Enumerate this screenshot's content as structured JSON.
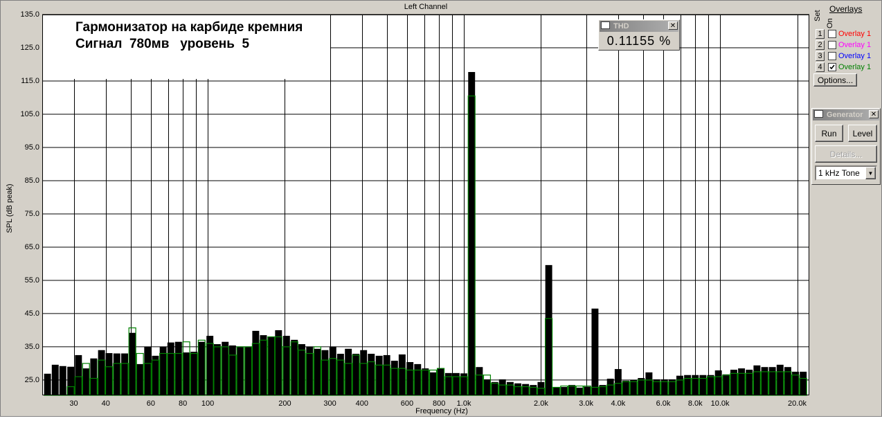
{
  "chart_data": {
    "type": "bar",
    "title": "Left Channel",
    "annotations": [
      "Гармонизатор на карбиде кремния",
      "Сигнал  780мв   уровень  5"
    ],
    "x_label": "Frequency (Hz)",
    "y_label": "SPL (dB peak)",
    "x_scale": "log",
    "grid": true,
    "xlim": [
      22.6,
      22300
    ],
    "ylim": [
      20.4,
      135
    ],
    "xticks": [
      30,
      40,
      60,
      80,
      100,
      200,
      300,
      400,
      600,
      800,
      {
        "value": 1000,
        "label": "1.0k"
      },
      {
        "value": 2000,
        "label": "2.0k"
      },
      {
        "value": 3000,
        "label": "3.0k"
      },
      {
        "value": 4000,
        "label": "4.0k"
      },
      {
        "value": 6000,
        "label": "6.0k"
      },
      {
        "value": 8000,
        "label": "8.0k"
      },
      {
        "value": 10000,
        "label": "10.0k"
      },
      {
        "value": 20000,
        "label": "20.0k"
      }
    ],
    "xgrid": [
      30,
      40,
      50,
      60,
      70,
      80,
      90,
      100,
      200,
      300,
      400,
      500,
      600,
      700,
      800,
      900,
      1000,
      2000,
      3000,
      4000,
      5000,
      6000,
      7000,
      8000,
      9000,
      10000,
      20000
    ],
    "yticks": [
      {
        "value": 25,
        "label": "25.0"
      },
      {
        "value": 35,
        "label": "35.0"
      },
      {
        "value": 45,
        "label": "45.0"
      },
      {
        "value": 55,
        "label": "55.0"
      },
      {
        "value": 65,
        "label": "65.0"
      },
      {
        "value": 75,
        "label": "75.0"
      },
      {
        "value": 85,
        "label": "85.0"
      },
      {
        "value": 95,
        "label": "95.0"
      },
      {
        "value": 105,
        "label": "105.0"
      },
      {
        "value": 115,
        "label": "115.0"
      },
      {
        "value": 125,
        "label": "125.0"
      },
      {
        "value": 135,
        "label": "135.0"
      }
    ],
    "x": [
      23.7,
      25.4,
      27.2,
      29.2,
      31.3,
      33.5,
      35.9,
      38.5,
      41.2,
      44.2,
      47.4,
      50.8,
      54.4,
      58.3,
      62.5,
      67.0,
      71.8,
      76.9,
      82.5,
      88.4,
      94.7,
      102,
      109,
      117,
      125,
      134,
      144,
      154,
      165,
      177,
      189,
      203,
      218,
      233,
      250,
      268,
      287,
      308,
      330,
      354,
      379,
      406,
      435,
      467,
      500,
      536,
      574,
      616,
      660,
      707,
      758,
      812,
      871,
      933,
      1000,
      1072,
      1149,
      1231,
      1320,
      1414,
      1516,
      1625,
      1741,
      1866,
      2000,
      2144,
      2297,
      2462,
      2639,
      2828,
      3031,
      3249,
      3482,
      3732,
      4000,
      4287,
      4595,
      4925,
      5278,
      5657,
      6063,
      6498,
      6964,
      7464,
      8000,
      8574,
      9190,
      9849,
      10556,
      11314,
      12126,
      12996,
      13929,
      14929,
      16000,
      17148,
      18379,
      19698,
      21112
    ],
    "series": [
      {
        "color": "#000000",
        "values": [
          26.9,
          29.6,
          29.2,
          29.0,
          32.5,
          28.5,
          31.5,
          34.0,
          33.1,
          33.0,
          33.0,
          39.2,
          29.8,
          35.0,
          32.3,
          35.0,
          36.3,
          36.5,
          33.3,
          33.5,
          36.5,
          38.3,
          35.8,
          36.5,
          35.4,
          35.0,
          35.0,
          39.8,
          38.5,
          37.9,
          40.0,
          38.3,
          37.1,
          35.8,
          35.0,
          34.4,
          34.0,
          35.0,
          32.9,
          34.4,
          32.9,
          34.0,
          32.9,
          32.3,
          32.5,
          30.8,
          32.7,
          30.4,
          29.8,
          28.5,
          27.3,
          28.5,
          27.1,
          27.1,
          27.0,
          117.7,
          28.9,
          25.2,
          24.4,
          25.2,
          24.4,
          24.0,
          23.8,
          23.5,
          24.4,
          59.6,
          22.9,
          22.9,
          23.5,
          22.7,
          23.0,
          46.5,
          23.5,
          25.4,
          28.3,
          24.8,
          25.0,
          25.6,
          27.3,
          25.2,
          25.2,
          25.2,
          26.3,
          26.5,
          26.5,
          26.5,
          26.5,
          27.9,
          26.7,
          28.1,
          28.5,
          28.1,
          29.4,
          28.9,
          28.9,
          29.6,
          28.9,
          27.5,
          27.5
        ]
      },
      {
        "name": "Overlay 1",
        "color": "#008000",
        "values": [
          20.5,
          20.5,
          20.5,
          23.0,
          26.0,
          30.0,
          25.5,
          31.0,
          29.0,
          30.0,
          30.0,
          40.7,
          33.0,
          30.0,
          31.0,
          33.0,
          33.0,
          33.0,
          36.5,
          33.0,
          37.0,
          36.0,
          35.0,
          35.0,
          32.5,
          35.0,
          35.0,
          36.0,
          37.0,
          38.0,
          38.0,
          35.0,
          36.5,
          34.0,
          33.0,
          35.0,
          31.0,
          31.5,
          31.0,
          30.0,
          32.5,
          30.0,
          30.5,
          29.5,
          29.5,
          28.5,
          28.5,
          28.0,
          28.0,
          28.0,
          28.0,
          28.5,
          26.0,
          26.0,
          26.0,
          110.5,
          26.5,
          26.5,
          24.0,
          23.5,
          23.5,
          23.0,
          23.0,
          22.8,
          22.5,
          43.5,
          22.8,
          23.2,
          23.2,
          23.2,
          23.2,
          22.8,
          23.0,
          23.5,
          24.0,
          24.5,
          24.5,
          25.0,
          25.0,
          24.5,
          24.5,
          24.5,
          25.0,
          25.5,
          25.5,
          25.5,
          26.0,
          26.0,
          26.5,
          27.0,
          27.0,
          27.0,
          27.5,
          27.5,
          27.5,
          27.5,
          27.5,
          26.5,
          25.5
        ]
      }
    ]
  },
  "thd": {
    "title": "THD",
    "value": "0.11155 %"
  },
  "overlays": {
    "title": "Overlays",
    "set_label": "Set",
    "on_label": "On",
    "rows": [
      {
        "set": "1",
        "name": "Overlay 1",
        "color": "#ff0000",
        "checked": false
      },
      {
        "set": "2",
        "name": "Overlay 1",
        "color": "#ff00ff",
        "checked": false
      },
      {
        "set": "3",
        "name": "Overlay 1",
        "color": "#0000ff",
        "checked": false
      },
      {
        "set": "4",
        "name": "Overlay 1",
        "color": "#008000",
        "checked": true
      }
    ],
    "options": "Options..."
  },
  "generator": {
    "title": "Generator",
    "run": "Run",
    "level": "Level",
    "details": "Details...",
    "signal": "1 kHz Tone"
  }
}
